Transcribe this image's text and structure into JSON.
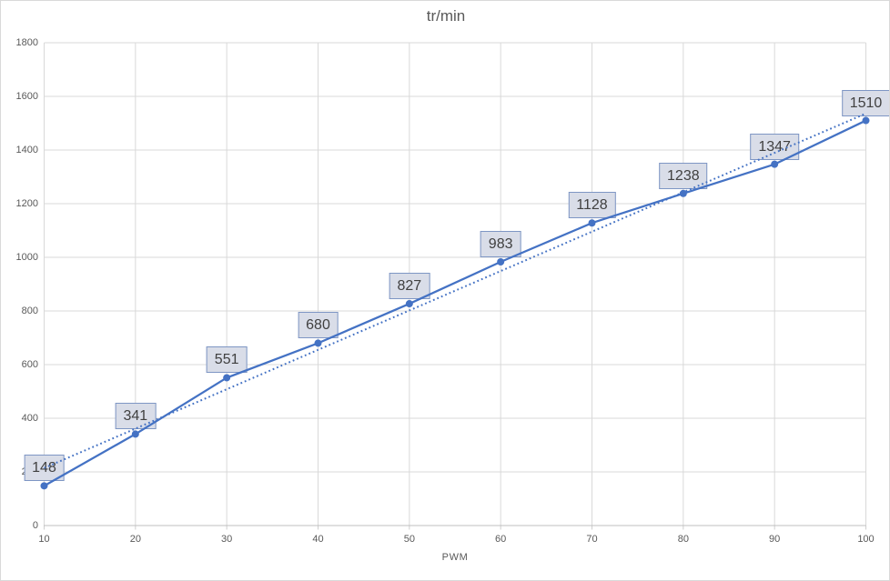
{
  "chart_data": {
    "type": "line",
    "title": "tr/min",
    "xlabel": "PWM",
    "ylabel": "",
    "x": [
      10,
      20,
      30,
      40,
      50,
      60,
      70,
      80,
      90,
      100
    ],
    "series": [
      {
        "name": "tr/min",
        "values": [
          148,
          341,
          551,
          680,
          827,
          983,
          1128,
          1238,
          1347,
          1510
        ],
        "color": "#4472C4",
        "marker": "circle",
        "data_labels": true
      }
    ],
    "trendline": {
      "type": "linear",
      "style": "dotted",
      "color": "#4472C4"
    },
    "xlim": [
      10,
      100
    ],
    "ylim": [
      0,
      1800
    ],
    "x_ticks": [
      10,
      20,
      30,
      40,
      50,
      60,
      70,
      80,
      90,
      100
    ],
    "y_ticks": [
      0,
      200,
      400,
      600,
      800,
      1000,
      1200,
      1400,
      1600,
      1800
    ],
    "grid": true,
    "legend": false
  },
  "colors": {
    "series": "#4472C4",
    "gridline": "#D9D9D9",
    "axis_line": "#BFBFBF",
    "tick": "#CFCFCF",
    "axis_text": "#595959",
    "title_text": "#595959",
    "label_fill": "#D9DDE8",
    "label_border": "#7E96C4",
    "label_text": "#404040",
    "background": "#FFFFFF",
    "chart_border": "#D9D9D9"
  }
}
